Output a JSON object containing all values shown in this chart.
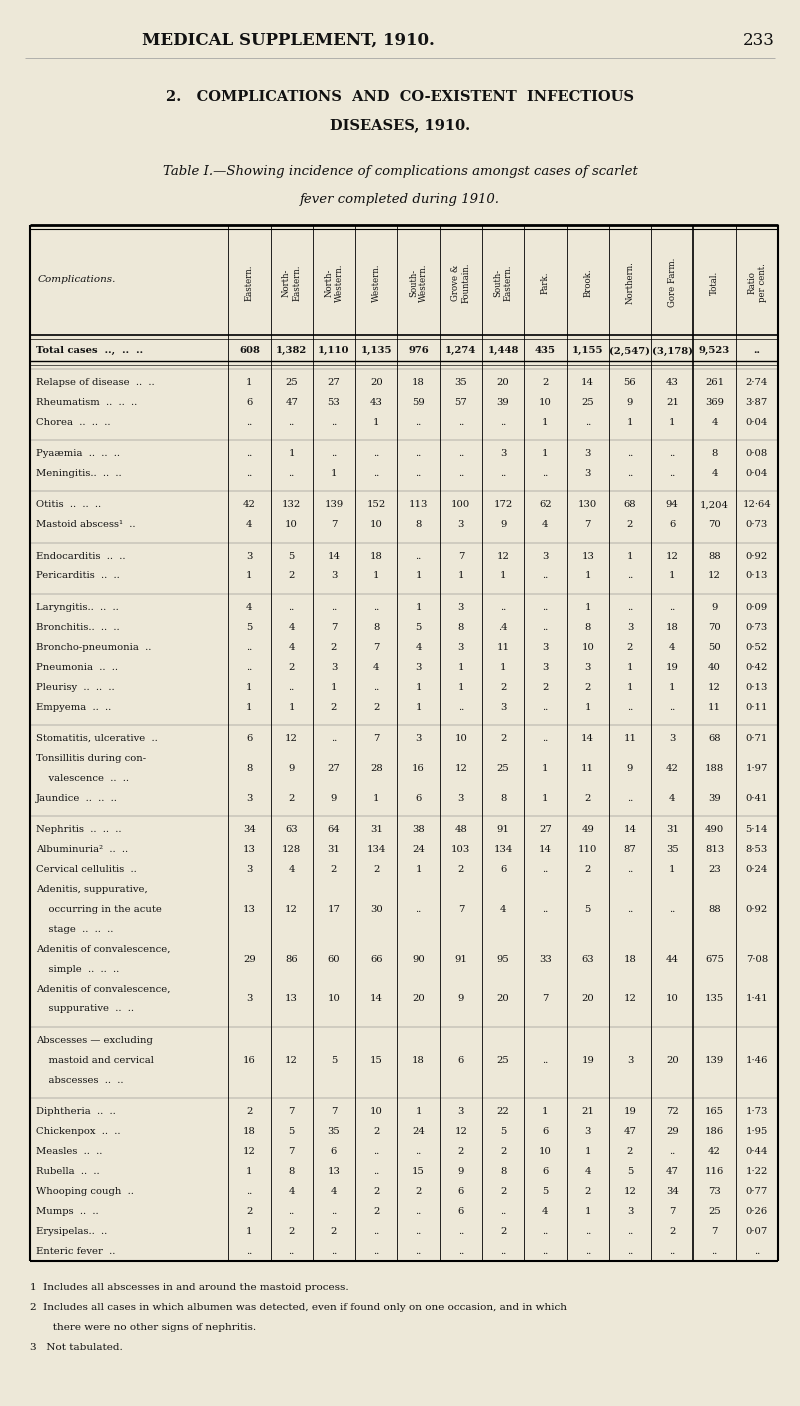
{
  "page_header": "MEDICAL SUPPLEMENT, 1910.",
  "page_number": "233",
  "section_title_1": "2.   COMPLICATIONS  AND  CO-EXISTENT  INFECTIOUS",
  "section_title_2": "DISEASES, 1910.",
  "caption_1": "Table I.—Showing incidence of complications amongst cases of scarlet",
  "caption_2": "fever completed during 1910.",
  "col_headers": [
    "Eastern.",
    "North-\nEastern.",
    "North-\nWestern.",
    "Western.",
    "South-\nWestern.",
    "Grove &\nFountain.",
    "South-\nEastern.",
    "Park.",
    "Brook.",
    "Northern.",
    "Gore Farm.",
    "Total.",
    "Ratio\nper cent."
  ],
  "row_label_header": "Complications.",
  "bg_color": "#ede8d8",
  "table_bg": "#f2ede0",
  "text_color": "#111111",
  "rows": [
    {
      "label": "Total cases  ..,  ..  ..",
      "values": [
        "608",
        "1,382",
        "1,110",
        "1,135",
        "976",
        "1,274",
        "1,448",
        "435",
        "1,155",
        "(2,547)",
        "(3,178)",
        "9,523",
        ".."
      ],
      "bold": true,
      "space_before": false
    },
    {
      "label": "Relapse of disease  ..  ..",
      "values": [
        "1",
        "25",
        "27",
        "20",
        "18",
        "35",
        "20",
        "2",
        "14",
        "56",
        "43",
        "261",
        "2·74"
      ],
      "bold": false,
      "space_before": true
    },
    {
      "label": "Rheumatism  ..  ..  ..",
      "values": [
        "6",
        "47",
        "53",
        "43",
        "59",
        "57",
        "39",
        "10",
        "25",
        "9",
        "21",
        "369",
        "3·87"
      ],
      "bold": false,
      "space_before": false
    },
    {
      "label": "Chorea  ..  ..  ..",
      "values": [
        "..",
        "..",
        "..",
        "1",
        "..",
        "..",
        "..",
        "1",
        "..",
        "1",
        "1",
        "4",
        "0·04"
      ],
      "bold": false,
      "space_before": false
    },
    {
      "label": "Pyaæmia  ..  ..  ..",
      "values": [
        "..",
        "1",
        "..",
        "..",
        "..",
        "..",
        "3",
        "1",
        "3",
        "..",
        "..",
        "8",
        "0·08"
      ],
      "bold": false,
      "space_before": true
    },
    {
      "label": "Meningitis..  ..  ..",
      "values": [
        "..",
        "..",
        "1",
        "..",
        "..",
        "..",
        "..",
        "..",
        "3",
        "..",
        "..",
        "4",
        "0·04"
      ],
      "bold": false,
      "space_before": false
    },
    {
      "label": "Otitis  ..  ..  ..",
      "values": [
        "42",
        "132",
        "139",
        "152",
        "113",
        "100",
        "172",
        "62",
        "130",
        "68",
        "94",
        "1,204",
        "12·64"
      ],
      "bold": false,
      "space_before": true
    },
    {
      "label": "Mastoid abscess¹  ..",
      "values": [
        "4",
        "10",
        "7",
        "10",
        "8",
        "3",
        "9",
        "4",
        "7",
        "2",
        "6",
        "70",
        "0·73"
      ],
      "bold": false,
      "space_before": false
    },
    {
      "label": "Endocarditis  ..  ..",
      "values": [
        "3",
        "5",
        "14",
        "18",
        "..",
        "7",
        "12",
        "3",
        "13",
        "1",
        "12",
        "88",
        "0·92"
      ],
      "bold": false,
      "space_before": true
    },
    {
      "label": "Pericarditis  ..  ..",
      "values": [
        "1",
        "2",
        "3",
        "1",
        "1",
        "1",
        "1",
        "..",
        "1",
        "..",
        "1",
        "12",
        "0·13"
      ],
      "bold": false,
      "space_before": false
    },
    {
      "label": "Laryngitis..  ..  ..",
      "values": [
        "4",
        "..",
        "..",
        "..",
        "1",
        "3",
        "..",
        "..",
        "1",
        "..",
        "..",
        "9",
        "0·09"
      ],
      "bold": false,
      "space_before": true
    },
    {
      "label": "Bronchitis..  ..  ..",
      "values": [
        "5",
        "4",
        "7",
        "8",
        "5",
        "8",
        ".4",
        "..",
        "8",
        "3",
        "18",
        "70",
        "0·73"
      ],
      "bold": false,
      "space_before": false
    },
    {
      "label": "Broncho-pneumonia  ..",
      "values": [
        "..",
        "4",
        "2",
        "7",
        "4",
        "3",
        "11",
        "3",
        "10",
        "2",
        "4",
        "50",
        "0·52"
      ],
      "bold": false,
      "space_before": false
    },
    {
      "label": "Pneumonia  ..  ..",
      "values": [
        "..",
        "2",
        "3",
        "4",
        "3",
        "1",
        "1",
        "3",
        "3",
        "1",
        "19",
        "40",
        "0·42"
      ],
      "bold": false,
      "space_before": false
    },
    {
      "label": "Pleurisy  ..  ..  ..",
      "values": [
        "1",
        "..",
        "1",
        "..",
        "1",
        "1",
        "2",
        "2",
        "2",
        "1",
        "1",
        "12",
        "0·13"
      ],
      "bold": false,
      "space_before": false
    },
    {
      "label": "Empyema  ..  ..",
      "values": [
        "1",
        "1",
        "2",
        "2",
        "1",
        "..",
        "3",
        "..",
        "1",
        "..",
        "..",
        "11",
        "0·11"
      ],
      "bold": false,
      "space_before": false
    },
    {
      "label": "Stomatitis, ulcerative  ..",
      "values": [
        "6",
        "12",
        "..",
        "7",
        "3",
        "10",
        "2",
        "..",
        "14",
        "11",
        "3",
        "68",
        "0·71"
      ],
      "bold": false,
      "space_before": true
    },
    {
      "label": "Tonsillitis during con-\n    valescence  ..  ..",
      "values": [
        "8",
        "9",
        "27",
        "28",
        "16",
        "12",
        "25",
        "1",
        "11",
        "9",
        "42",
        "188",
        "1·97"
      ],
      "bold": false,
      "space_before": false
    },
    {
      "label": "Jaundice  ..  ..  ..",
      "values": [
        "3",
        "2",
        "9",
        "1",
        "6",
        "3",
        "8",
        "1",
        "2",
        "..",
        "4",
        "39",
        "0·41"
      ],
      "bold": false,
      "space_before": false
    },
    {
      "label": "Nephritis  ..  ..  ..",
      "values": [
        "34",
        "63",
        "64",
        "31",
        "38",
        "48",
        "91",
        "27",
        "49",
        "14",
        "31",
        "490",
        "5·14"
      ],
      "bold": false,
      "space_before": true
    },
    {
      "label": "Albuminuria²  ..  ..",
      "values": [
        "13",
        "128",
        "31",
        "134",
        "24",
        "103",
        "134",
        "14",
        "110",
        "87",
        "35",
        "813",
        "8·53"
      ],
      "bold": false,
      "space_before": false
    },
    {
      "label": "Cervical cellulitis  ..",
      "values": [
        "3",
        "4",
        "2",
        "2",
        "1",
        "2",
        "6",
        "..",
        "2",
        "..",
        "1",
        "23",
        "0·24"
      ],
      "bold": false,
      "space_before": false
    },
    {
      "label": "Adenitis, suppurative,\n    occurring in the acute\n    stage  ..  ..  ..",
      "values": [
        "13",
        "12",
        "17",
        "30",
        "..",
        "7",
        "4",
        "..",
        "5",
        "..",
        "..",
        "88",
        "0·92"
      ],
      "bold": false,
      "space_before": false
    },
    {
      "label": "Adenitis of convalescence,\n    simple  ..  ..  ..",
      "values": [
        "29",
        "86",
        "60",
        "66",
        "90",
        "91",
        "95",
        "33",
        "63",
        "18",
        "44",
        "675",
        "7·08"
      ],
      "bold": false,
      "space_before": false
    },
    {
      "label": "Adenitis of convalescence,\n    suppurative  ..  ..",
      "values": [
        "3",
        "13",
        "10",
        "14",
        "20",
        "9",
        "20",
        "7",
        "20",
        "12",
        "10",
        "135",
        "1·41"
      ],
      "bold": false,
      "space_before": false
    },
    {
      "label": "Abscesses — excluding\n    mastoid and cervical\n    abscesses  ..  ..",
      "values": [
        "16",
        "12",
        "5",
        "15",
        "18",
        "6",
        "25",
        "..",
        "19",
        "3",
        "20",
        "139",
        "1·46"
      ],
      "bold": false,
      "space_before": true
    },
    {
      "label": "Diphtheria  ..  ..",
      "values": [
        "2",
        "7",
        "7",
        "10",
        "1",
        "3",
        "22",
        "1",
        "21",
        "19",
        "72",
        "165",
        "1·73"
      ],
      "bold": false,
      "space_before": true
    },
    {
      "label": "Chickenpox  ..  ..",
      "values": [
        "18",
        "5",
        "35",
        "2",
        "24",
        "12",
        "5",
        "6",
        "3",
        "47",
        "29",
        "186",
        "1·95"
      ],
      "bold": false,
      "space_before": false
    },
    {
      "label": "Measles  ..  ..",
      "values": [
        "12",
        "7",
        "6",
        "..",
        "..",
        "2",
        "2",
        "10",
        "1",
        "2",
        "..",
        "42",
        "0·44"
      ],
      "bold": false,
      "space_before": false
    },
    {
      "label": "Rubella  ..  ..",
      "values": [
        "1",
        "8",
        "13",
        "..",
        "15",
        "9",
        "8",
        "6",
        "4",
        "5",
        "47",
        "116",
        "1·22"
      ],
      "bold": false,
      "space_before": false
    },
    {
      "label": "Whooping cough  ..",
      "values": [
        "..",
        "4",
        "4",
        "2",
        "2",
        "6",
        "2",
        "5",
        "2",
        "12",
        "34",
        "73",
        "0·77"
      ],
      "bold": false,
      "space_before": false
    },
    {
      "label": "Mumps  ..  ..",
      "values": [
        "2",
        "..",
        "..",
        "2",
        "..",
        "6",
        "..",
        "4",
        "1",
        "3",
        "7",
        "25",
        "0·26"
      ],
      "bold": false,
      "space_before": false
    },
    {
      "label": "Erysipelas..  ..",
      "values": [
        "1",
        "2",
        "2",
        "..",
        "..",
        "..",
        "2",
        "..",
        "..",
        "..",
        "2",
        "7",
        "0·07"
      ],
      "bold": false,
      "space_before": false
    },
    {
      "label": "Enteric fever  ..",
      "values": [
        "..",
        "..",
        "..",
        "..",
        "..",
        "..",
        "..",
        "..",
        "..",
        "..",
        "..",
        "..",
        ".."
      ],
      "bold": false,
      "space_before": false
    }
  ],
  "footnotes": [
    "1  Includes all abscesses in and around the mastoid process.",
    "2  Includes all cases in which albumen was detected, even if found only on one occasion, and in which",
    "       there were no other signs of nephritis.",
    "3   Not tabulated."
  ]
}
